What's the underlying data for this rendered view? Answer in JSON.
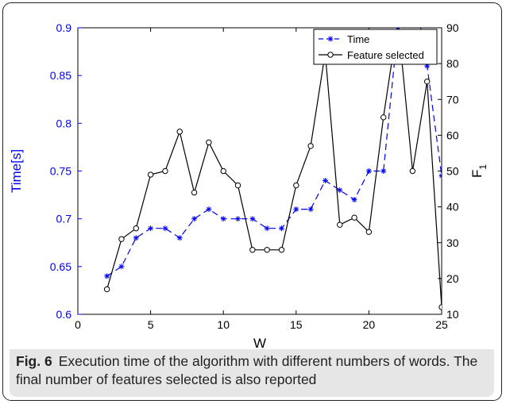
{
  "chart_data": {
    "type": "line",
    "x": [
      2,
      3,
      4,
      5,
      6,
      7,
      8,
      9,
      10,
      11,
      12,
      13,
      14,
      15,
      16,
      17,
      18,
      19,
      20,
      21,
      22,
      23,
      24,
      25
    ],
    "xlabel": "W",
    "xlim": [
      0,
      25
    ],
    "xticks": [
      "0",
      "5",
      "10",
      "15",
      "20",
      "25"
    ],
    "left_axis": {
      "label": "Time[s]",
      "ylim": [
        0.6,
        0.9
      ],
      "ticks": [
        "0.6",
        "0.65",
        "0.7",
        "0.75",
        "0.8",
        "0.85",
        "0.9"
      ],
      "color": "#0000ff"
    },
    "right_axis": {
      "label": "F",
      "label_subscript": "1",
      "ylim": [
        10,
        90
      ],
      "ticks": [
        "10",
        "20",
        "30",
        "40",
        "50",
        "60",
        "70",
        "80",
        "90"
      ],
      "color": "#000000"
    },
    "series": [
      {
        "name": "Time",
        "axis": "left",
        "color": "#0000ff",
        "style": "dashed",
        "marker": "asterisk",
        "values": [
          0.64,
          0.65,
          0.68,
          0.69,
          0.69,
          0.68,
          0.7,
          0.71,
          0.7,
          0.7,
          0.7,
          0.69,
          0.69,
          0.71,
          0.71,
          0.74,
          0.73,
          0.72,
          0.75,
          0.75,
          0.9,
          0.95,
          0.86,
          0.745
        ]
      },
      {
        "name": "Feature selected",
        "axis": "right",
        "color": "#000000",
        "style": "solid",
        "marker": "circle",
        "values": [
          17,
          31,
          34,
          49,
          50,
          61,
          44,
          58,
          50,
          46,
          28,
          28,
          28,
          46,
          57,
          83,
          35,
          37,
          33,
          65,
          92,
          50,
          75,
          12
        ]
      }
    ],
    "legend": "top-right",
    "grid": false
  },
  "caption": {
    "label": "Fig. 6",
    "text": "Execution time of the algorithm with different numbers of words. The final number of features selected is also reported"
  }
}
